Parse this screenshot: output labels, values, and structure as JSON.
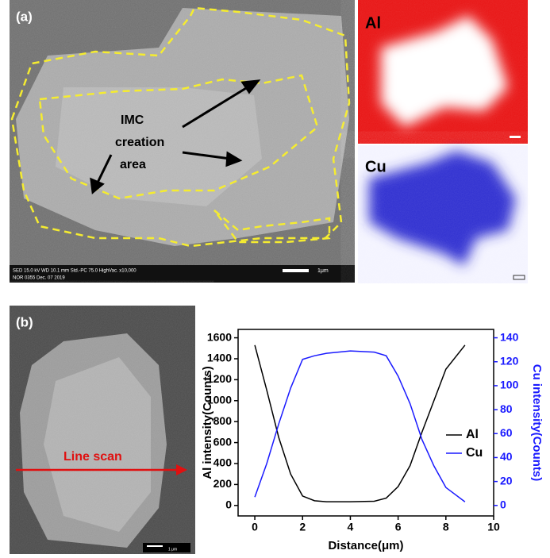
{
  "figure": {
    "panel_a": {
      "label": "(a)",
      "annotation": [
        "IMC",
        "creation",
        "area"
      ],
      "sem_info": [
        "SED   15.0 kV   WD 10.1 mm    Std.-PC 75.0    HighVac.   x10,000",
        "NOR   0355    Dec. 07 2019"
      ],
      "scale_bar": "1μm",
      "map_al": "Al",
      "map_cu": "Cu"
    },
    "panel_b": {
      "label": "(b)",
      "annotation": "Line scan",
      "scale_bar": "1 μm"
    }
  },
  "chart_data": {
    "type": "line",
    "x_label": "Distance(μm)",
    "y_label": "Al intensity(Counts)",
    "y2_label": "Cu intensity(Counts)",
    "x": [
      0,
      0.5,
      1,
      1.5,
      2,
      2.5,
      3,
      4,
      5,
      5.5,
      6,
      6.5,
      7,
      7.5,
      8,
      8.8
    ],
    "series": [
      {
        "name": "Al",
        "color": "#000000",
        "values": [
          1530,
          1100,
          650,
          300,
          90,
          45,
          35,
          35,
          40,
          70,
          180,
          380,
          700,
          1000,
          1300,
          1530
        ]
      },
      {
        "name": "Cu",
        "color": "#1a1aff",
        "axis": "y2",
        "values": [
          7,
          35,
          68,
          98,
          122,
          125,
          127,
          129,
          128,
          125,
          108,
          85,
          55,
          33,
          15,
          3
        ]
      }
    ],
    "xlim": [
      -0.7,
      10
    ],
    "xticks": [
      0,
      2,
      4,
      6,
      8,
      10
    ],
    "ylim": [
      -100,
      1680
    ],
    "yticks": [
      0,
      200,
      400,
      600,
      800,
      1000,
      1200,
      1400,
      1600
    ],
    "y2lim": [
      -8.75,
      147
    ],
    "y2ticks": [
      0,
      20,
      40,
      60,
      80,
      100,
      120,
      140
    ],
    "legend": "right"
  }
}
